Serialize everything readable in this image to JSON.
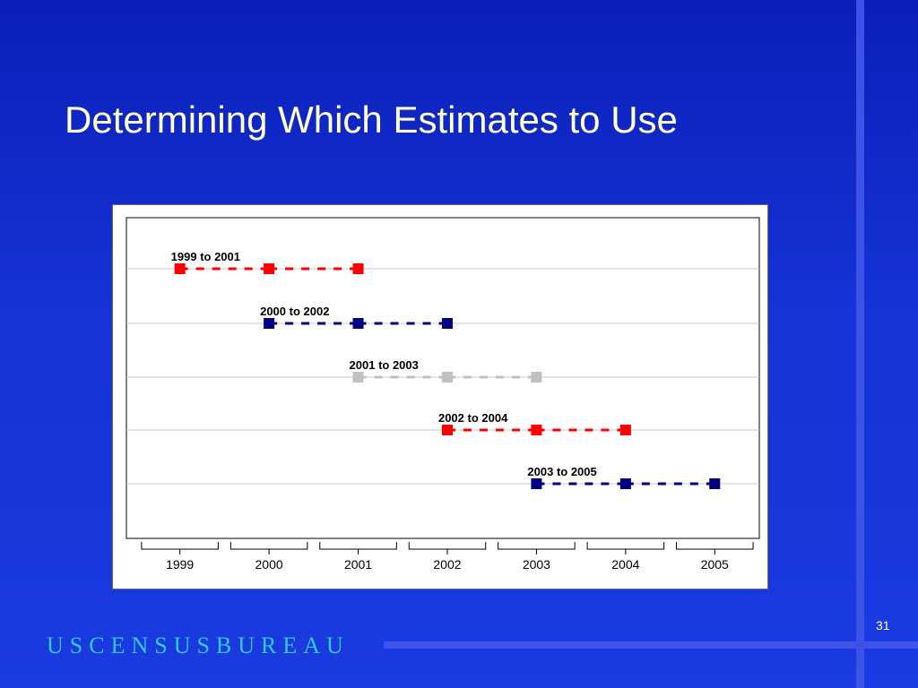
{
  "slide": {
    "title": "Determining Which Estimates to Use",
    "slide_number": "31",
    "brand": "USCENSUSBUREAU"
  },
  "colors": {
    "background": "#1533d6",
    "accent_bar": "#3d52e6",
    "title_text": "#ffffc8",
    "brand_text": "#30c8e8",
    "series_red": "#ff0000",
    "series_navy": "#000080",
    "series_gray": "#c0c0c0"
  },
  "chart_data": {
    "type": "line",
    "title": "",
    "xlabel": "",
    "ylabel": "",
    "categories": [
      "1999",
      "2000",
      "2001",
      "2002",
      "2003",
      "2004",
      "2005"
    ],
    "xlim": [
      1998.4,
      2005.5
    ],
    "grid": true,
    "legend": "none",
    "series": [
      {
        "name": "1999 to 2001",
        "x": [
          1999,
          2000,
          2001
        ],
        "row": 1,
        "color": "#ff0000",
        "style": "dashed",
        "marker": "square"
      },
      {
        "name": "2000 to 2002",
        "x": [
          2000,
          2001,
          2002
        ],
        "row": 2,
        "color": "#000080",
        "style": "dashed",
        "marker": "square"
      },
      {
        "name": "2001 to 2003",
        "x": [
          2001,
          2002,
          2003
        ],
        "row": 3,
        "color": "#c0c0c0",
        "style": "dashed",
        "marker": "square"
      },
      {
        "name": "2002 to 2004",
        "x": [
          2002,
          2003,
          2004
        ],
        "row": 4,
        "color": "#ff0000",
        "style": "dashed",
        "marker": "square"
      },
      {
        "name": "2003 to 2005",
        "x": [
          2003,
          2004,
          2005
        ],
        "row": 5,
        "color": "#000080",
        "style": "dashed",
        "marker": "square"
      }
    ]
  }
}
